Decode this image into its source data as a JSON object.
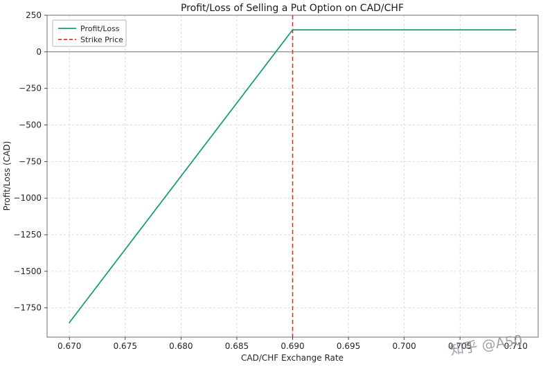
{
  "page": {
    "background": "#ffffff"
  },
  "chart_data": {
    "type": "line",
    "title": "Profit/Loss of Selling a Put Option on CAD/CHF",
    "xlabel": "CAD/CHF Exchange Rate",
    "ylabel": "Profit/Loss (CAD)",
    "xlim": [
      0.668,
      0.712
    ],
    "ylim": [
      -1950,
      250
    ],
    "xticks": [
      0.67,
      0.675,
      0.68,
      0.685,
      0.69,
      0.695,
      0.7,
      0.705,
      0.71
    ],
    "xtick_labels": [
      "0.670",
      "0.675",
      "0.680",
      "0.685",
      "0.690",
      "0.695",
      "0.700",
      "0.705",
      "0.710"
    ],
    "yticks": [
      250,
      0,
      -250,
      -500,
      -750,
      -1000,
      -1250,
      -1500,
      -1750
    ],
    "ytick_labels": [
      "250",
      "0",
      "−250",
      "−500",
      "−750",
      "−1000",
      "−1250",
      "−1500",
      "−1750"
    ],
    "grid": true,
    "grid_color": "#d0d0d0",
    "spine_color": "#6f6f6f",
    "series": [
      {
        "name": "Profit/Loss",
        "color": "#1b9e77",
        "x": [
          0.67,
          0.69,
          0.71
        ],
        "y": [
          -1850,
          150,
          150
        ]
      }
    ],
    "vlines": [
      {
        "label": "Strike Price",
        "x": 0.69,
        "color": "#e53030",
        "style": "dashed"
      }
    ],
    "hlines": [
      {
        "y": 0,
        "color": "#808080",
        "style": "solid"
      }
    ],
    "legend": {
      "position": "upper left",
      "entries": [
        {
          "label": "Profit/Loss",
          "color": "#1b9e77",
          "style": "solid"
        },
        {
          "label": "Strike Price",
          "color": "#e53030",
          "style": "dashed"
        }
      ]
    }
  },
  "watermark": {
    "text": "知乎 @A50",
    "color": "#8d939c"
  }
}
